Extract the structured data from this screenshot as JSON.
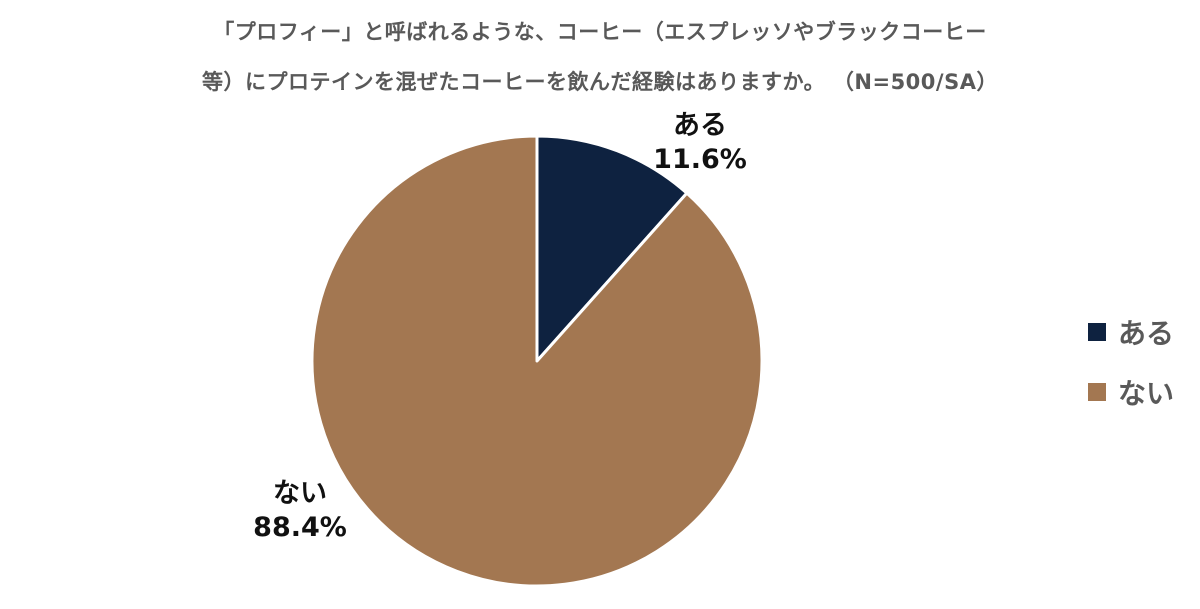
{
  "title_line1": "「プロフィー」と呼ばれるような、コーヒー（エスプレッソやブラックコーヒー",
  "title_line2": "等）にプロテインを混ぜたコーヒーを飲んだ経験はありますか。 （N=500/SA）",
  "colors": {
    "ある": "#0e2240",
    "ない": "#a37751",
    "border": "#ffffff"
  },
  "chart_data": {
    "type": "pie",
    "title": "「プロフィー」と呼ばれるような、コーヒー（エスプレッソやブラックコーヒー等）にプロテインを混ぜたコーヒーを飲んだ経験はありますか。 （N=500/SA）",
    "categories": [
      "ある",
      "ない"
    ],
    "values": [
      11.6,
      88.4
    ],
    "value_labels": [
      "11.6%",
      "88.4%"
    ],
    "start_angle": "12 o'clock",
    "direction": "clockwise",
    "legend_placement": "right"
  }
}
